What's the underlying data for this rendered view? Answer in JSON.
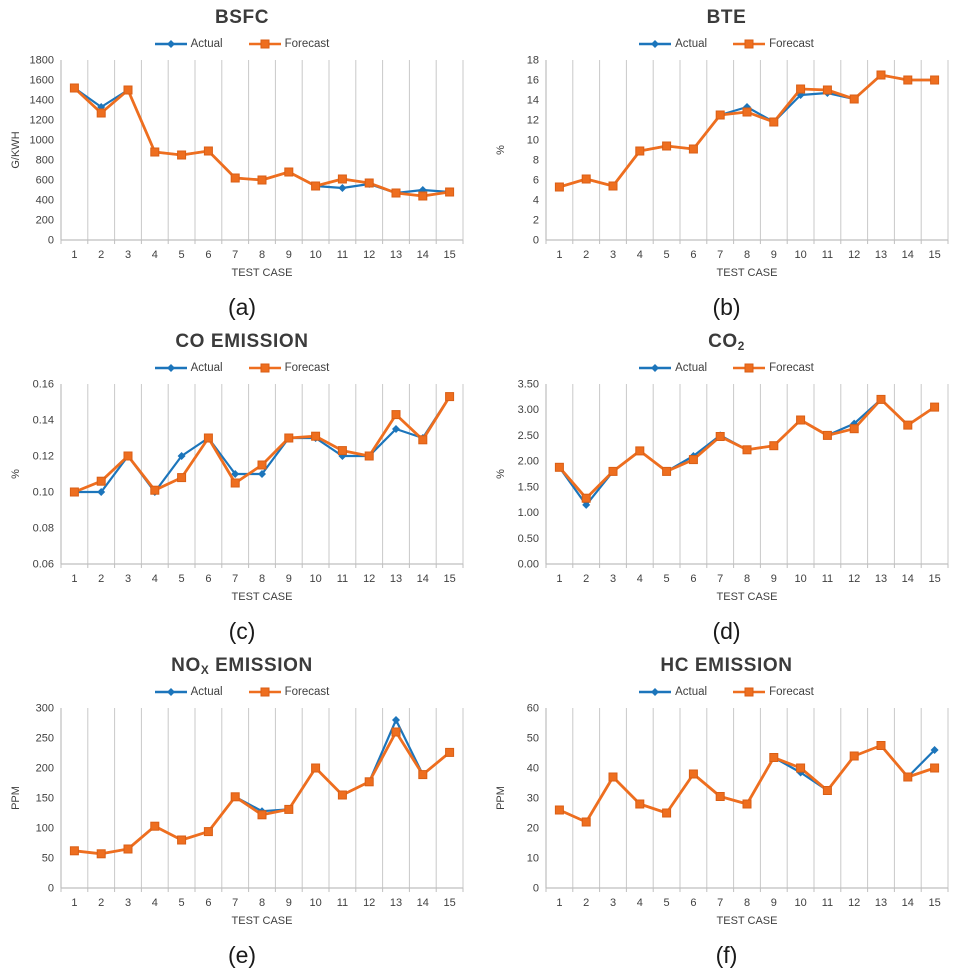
{
  "legend": {
    "actual": "Actual",
    "forecast": "Forecast"
  },
  "colors": {
    "actual": "#1C75BB",
    "forecast": "#EE6E1F",
    "forecast_edge": "#D95E14",
    "grid": "#C9C9C9",
    "axis": "#BFBFBF",
    "text": "#404040"
  },
  "chart_data": [
    {
      "type": "line",
      "title_pre": "BSFC",
      "title_sub": "",
      "title_post": "",
      "caption": "(a)",
      "xlabel": "TEST CASE",
      "ylabel": "G/KWH",
      "ylim": [
        0,
        1800
      ],
      "y_step": 200,
      "y_decimals": 0,
      "grid": "vertical",
      "legend_position": "top",
      "categories": [
        1,
        2,
        3,
        4,
        5,
        6,
        7,
        8,
        9,
        10,
        11,
        12,
        13,
        14,
        15
      ],
      "series": [
        {
          "name": "Actual",
          "values": [
            1520,
            1330,
            1500,
            880,
            850,
            890,
            620,
            600,
            680,
            540,
            520,
            560,
            470,
            500,
            480
          ]
        },
        {
          "name": "Forecast",
          "values": [
            1520,
            1270,
            1500,
            880,
            850,
            890,
            620,
            600,
            680,
            540,
            610,
            570,
            470,
            440,
            480
          ]
        }
      ]
    },
    {
      "type": "line",
      "title_pre": "BTE",
      "title_sub": "",
      "title_post": "",
      "caption": "(b)",
      "xlabel": "TEST CASE",
      "ylabel": "%",
      "ylim": [
        0,
        18
      ],
      "y_step": 2,
      "y_decimals": 0,
      "grid": "vertical",
      "legend_position": "top",
      "categories": [
        1,
        2,
        3,
        4,
        5,
        6,
        7,
        8,
        9,
        10,
        11,
        12,
        13,
        14,
        15
      ],
      "series": [
        {
          "name": "Actual",
          "values": [
            5.3,
            6.1,
            5.4,
            8.9,
            9.4,
            9.1,
            12.5,
            13.3,
            11.8,
            14.5,
            14.7,
            14.1,
            16.5,
            16.0,
            16.0
          ]
        },
        {
          "name": "Forecast",
          "values": [
            5.3,
            6.1,
            5.4,
            8.9,
            9.4,
            9.1,
            12.5,
            12.8,
            11.8,
            15.1,
            15.0,
            14.1,
            16.5,
            16.0,
            16.0
          ]
        }
      ]
    },
    {
      "type": "line",
      "title_pre": "CO EMISSION",
      "title_sub": "",
      "title_post": "",
      "caption": "(c)",
      "xlabel": "TEST CASE",
      "ylabel": "%",
      "ylim": [
        0.06,
        0.16
      ],
      "y_step": 0.02,
      "y_decimals": 2,
      "grid": "vertical",
      "legend_position": "top",
      "categories": [
        1,
        2,
        3,
        4,
        5,
        6,
        7,
        8,
        9,
        10,
        11,
        12,
        13,
        14,
        15
      ],
      "series": [
        {
          "name": "Actual",
          "values": [
            0.1,
            0.1,
            0.12,
            0.1,
            0.12,
            0.13,
            0.11,
            0.11,
            0.13,
            0.13,
            0.12,
            0.12,
            0.135,
            0.13,
            0.153
          ]
        },
        {
          "name": "Forecast",
          "values": [
            0.1,
            0.106,
            0.12,
            0.101,
            0.108,
            0.13,
            0.105,
            0.115,
            0.13,
            0.131,
            0.123,
            0.12,
            0.143,
            0.129,
            0.153
          ]
        }
      ]
    },
    {
      "type": "line",
      "title_pre": "CO",
      "title_sub": "2",
      "title_post": "",
      "caption": "(d)",
      "xlabel": "TEST CASE",
      "ylabel": "%",
      "ylim": [
        0,
        3.5
      ],
      "y_step": 0.5,
      "y_decimals": 2,
      "grid": "vertical",
      "legend_position": "top",
      "categories": [
        1,
        2,
        3,
        4,
        5,
        6,
        7,
        8,
        9,
        10,
        11,
        12,
        13,
        14,
        15
      ],
      "series": [
        {
          "name": "Actual",
          "values": [
            1.88,
            1.15,
            1.8,
            2.2,
            1.8,
            2.1,
            2.5,
            2.22,
            2.3,
            2.8,
            2.5,
            2.73,
            3.2,
            2.7,
            3.05
          ]
        },
        {
          "name": "Forecast",
          "values": [
            1.88,
            1.28,
            1.8,
            2.2,
            1.8,
            2.03,
            2.48,
            2.22,
            2.3,
            2.8,
            2.5,
            2.63,
            3.2,
            2.7,
            3.05
          ]
        }
      ]
    },
    {
      "type": "line",
      "title_pre": "NO",
      "title_sub": "X",
      "title_post": " EMISSION",
      "caption": "(e)",
      "xlabel": "TEST CASE",
      "ylabel": "PPM",
      "ylim": [
        0,
        300
      ],
      "y_step": 50,
      "y_decimals": 0,
      "grid": "vertical",
      "legend_position": "top",
      "categories": [
        1,
        2,
        3,
        4,
        5,
        6,
        7,
        8,
        9,
        10,
        11,
        12,
        13,
        14,
        15
      ],
      "series": [
        {
          "name": "Actual",
          "values": [
            62,
            57,
            65,
            103,
            80,
            94,
            152,
            128,
            131,
            200,
            155,
            177,
            280,
            189,
            226
          ]
        },
        {
          "name": "Forecast",
          "values": [
            62,
            57,
            65,
            103,
            80,
            94,
            152,
            122,
            131,
            200,
            155,
            177,
            260,
            189,
            226
          ]
        }
      ]
    },
    {
      "type": "line",
      "title_pre": "HC EMISSION",
      "title_sub": "",
      "title_post": "",
      "caption": "(f)",
      "xlabel": "TEST CASE",
      "ylabel": "PPM",
      "ylim": [
        0,
        60
      ],
      "y_step": 10,
      "y_decimals": 0,
      "grid": "vertical",
      "legend_position": "top",
      "categories": [
        1,
        2,
        3,
        4,
        5,
        6,
        7,
        8,
        9,
        10,
        11,
        12,
        13,
        14,
        15
      ],
      "series": [
        {
          "name": "Actual",
          "values": [
            26,
            22,
            37,
            28,
            25,
            38,
            30.5,
            28,
            43.5,
            38.5,
            32.5,
            44,
            47.5,
            37,
            46
          ]
        },
        {
          "name": "Forecast",
          "values": [
            26,
            22,
            37,
            28,
            25,
            38,
            30.5,
            28,
            43.5,
            40,
            32.5,
            44,
            47.5,
            37,
            40
          ]
        }
      ]
    }
  ]
}
